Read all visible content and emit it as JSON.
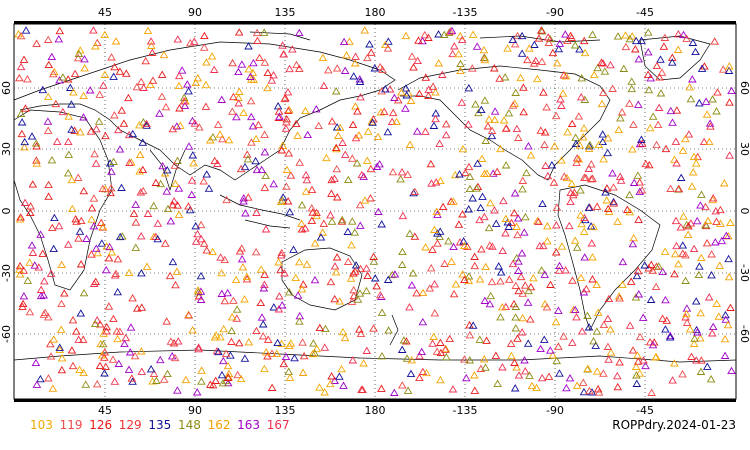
{
  "caption": "ROPPdry.2024-01-23",
  "map": {
    "top_lon_ticks": [
      "45",
      "90",
      "135",
      "180",
      "-135",
      "-90",
      "-45"
    ],
    "bottom_lon_ticks": [
      "45",
      "90",
      "135",
      "180",
      "-135",
      "-90",
      "-45"
    ],
    "left_lat_ticks": [
      "60",
      "30",
      "0",
      "-30",
      "-60"
    ],
    "right_lat_ticks": [
      "60",
      "30",
      "0",
      "-30",
      "-60"
    ],
    "grid": "dotted",
    "marker": "open-triangle"
  },
  "legend": [
    {
      "label": "103",
      "color": "#f4a800"
    },
    {
      "label": "119",
      "color": "#f04a4a"
    },
    {
      "label": "126",
      "color": "#e81818"
    },
    {
      "label": "129",
      "color": "#f03030"
    },
    {
      "label": "135",
      "color": "#10109c"
    },
    {
      "label": "148",
      "color": "#8c8c14"
    },
    {
      "label": "162",
      "color": "#f4a000"
    },
    {
      "label": "163",
      "color": "#a000c8"
    },
    {
      "label": "167",
      "color": "#f03050"
    }
  ]
}
